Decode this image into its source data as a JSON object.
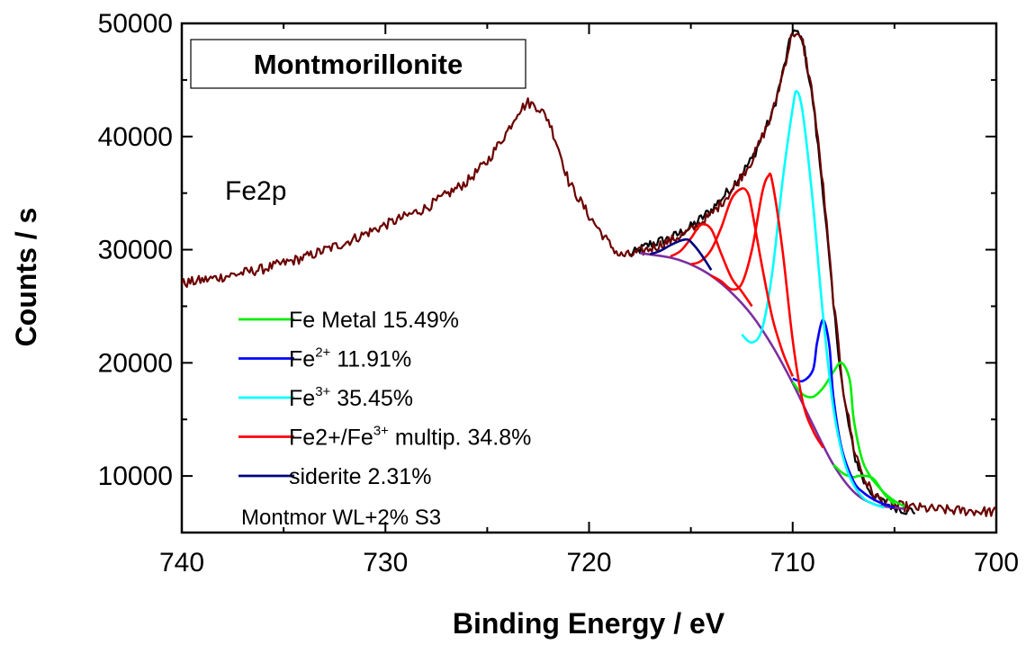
{
  "chart_data": {
    "type": "line",
    "title": "Montmorillonite",
    "xlabel": "Binding Energy / eV",
    "ylabel": "Counts / s",
    "xlim": [
      740,
      700
    ],
    "ylim": [
      5000,
      50000
    ],
    "x_ticks": [
      "740",
      "730",
      "720",
      "710",
      "700"
    ],
    "y_ticks": [
      "10000",
      "20000",
      "30000",
      "40000",
      "50000"
    ],
    "grid": false,
    "legend_position": "bottom-left",
    "annotations": {
      "region_label": "Fe2p",
      "sample_label": "Montmor WL+2%  S3"
    },
    "legend": [
      {
        "prefix": "Fe Metal  15.49%",
        "sup": "",
        "suffix": "",
        "color": "#00ee00"
      },
      {
        "prefix": "Fe",
        "sup": "2+",
        "suffix": "   11.91%",
        "color": "#0000ff"
      },
      {
        "prefix": "Fe",
        "sup": "3+",
        "suffix": "   35.45%",
        "color": "#00ffff"
      },
      {
        "prefix": "Fe2+/Fe",
        "sup": "3+",
        "suffix": " multip.  34.8%",
        "color": "#ff0000"
      },
      {
        "prefix": "siderite   2.31%",
        "sup": "",
        "suffix": "",
        "color": "#000080"
      }
    ],
    "series": [
      {
        "role": "measured spectrum",
        "color": "#000000",
        "x": [
          718,
          717,
          716,
          715,
          714,
          713,
          712,
          711,
          710.5,
          710,
          709.5,
          709,
          708.5,
          708,
          707.5,
          707,
          706.5,
          706,
          705.5,
          705,
          704.5,
          704
        ],
        "y": [
          29500,
          30500,
          31000,
          32000,
          33500,
          35500,
          38000,
          42000,
          45500,
          49500,
          48500,
          43000,
          35000,
          25000,
          17000,
          12000,
          9500,
          8200,
          7600,
          7300,
          7000,
          6900
        ]
      },
      {
        "role": "experimental envelope",
        "color": "#6b0000",
        "x": [
          740,
          738,
          736,
          734,
          732,
          730,
          728,
          726,
          725,
          724,
          723.5,
          723,
          722.5,
          722,
          721.5,
          721,
          720,
          719,
          718.5,
          718,
          717,
          716,
          715,
          714,
          713,
          712,
          711,
          710.5,
          710,
          709.5,
          709,
          708.5,
          708,
          707.5,
          707,
          706.5,
          706,
          705.5,
          705,
          704,
          703,
          702,
          701,
          700
        ],
        "y": [
          27000,
          27600,
          28300,
          29300,
          30600,
          32200,
          33700,
          36000,
          37800,
          40500,
          42200,
          43000,
          42600,
          41500,
          39000,
          36000,
          33000,
          30500,
          29500,
          29500,
          30100,
          30800,
          31700,
          33100,
          35200,
          37900,
          42000,
          45500,
          49300,
          48300,
          43500,
          35500,
          25500,
          17500,
          12500,
          9800,
          8300,
          7700,
          7400,
          7200,
          7050,
          6950,
          6900,
          6800
        ]
      },
      {
        "role": "background",
        "color": "#7b2ea0",
        "x": [
          717.5,
          716,
          715,
          714,
          713,
          712,
          711,
          710,
          709,
          708,
          707,
          706,
          705,
          704.5
        ],
        "y": [
          29700,
          29300,
          28700,
          27700,
          26200,
          24200,
          21500,
          18200,
          14500,
          11000,
          8600,
          7500,
          7200,
          7100
        ]
      },
      {
        "role": "Fe Metal",
        "color": "#00ee00",
        "x": [
          710,
          709.5,
          709,
          708.5,
          708,
          707.6,
          707.2,
          707,
          706.6,
          706.2,
          706,
          705.5,
          705,
          704.5
        ],
        "y": [
          18300,
          17200,
          17000,
          17800,
          19200,
          20000,
          18500,
          15000,
          11500,
          10000,
          9500,
          8500,
          7800,
          7300
        ]
      },
      {
        "role": "Fe Metal minor peak",
        "color": "#00ee00",
        "x": [
          708,
          707.5,
          707,
          706.8,
          706.4,
          706,
          705.5,
          705
        ],
        "y": [
          11000,
          10200,
          9900,
          10000,
          10000,
          9700,
          8400,
          7500
        ]
      },
      {
        "role": "Fe2+",
        "color": "#0000ff",
        "x": [
          710,
          709.5,
          709,
          708.8,
          708.5,
          708.2,
          708,
          707.6,
          707,
          706.5,
          706,
          705.5,
          705
        ],
        "y": [
          18600,
          18400,
          19400,
          21800,
          23800,
          21500,
          17000,
          12500,
          9500,
          8500,
          7900,
          7500,
          7200
        ]
      },
      {
        "role": "Fe3+",
        "color": "#00ffff",
        "x": [
          712.5,
          712,
          711.5,
          711,
          710.5,
          710,
          709.8,
          709.5,
          709,
          708.5,
          708,
          707.5,
          707,
          706.5,
          706,
          705.5
        ],
        "y": [
          22500,
          21800,
          23000,
          28000,
          36000,
          42500,
          44000,
          42000,
          34000,
          24000,
          16000,
          11500,
          9200,
          8000,
          7500,
          7200
        ]
      },
      {
        "role": "multiplet 1",
        "color": "#ff0000",
        "x": [
          716,
          715.5,
          715,
          714.5,
          714,
          713.5,
          713,
          712.5,
          712
        ],
        "y": [
          29400,
          29900,
          31000,
          32200,
          31800,
          29600,
          27500,
          26300,
          25000
        ]
      },
      {
        "role": "multiplet 2",
        "color": "#ff0000",
        "x": [
          715,
          714.5,
          714,
          713.5,
          713,
          712.5,
          712.2,
          712,
          711.5,
          711,
          710.5,
          710
        ],
        "y": [
          28700,
          29000,
          30000,
          32000,
          34500,
          35400,
          35000,
          33500,
          28500,
          24000,
          21000,
          18800
        ]
      },
      {
        "role": "multiplet 3",
        "color": "#ff0000",
        "x": [
          714,
          713.5,
          713,
          712.5,
          712,
          711.5,
          711.2,
          711,
          710.5,
          710,
          709.5,
          709,
          708.5
        ],
        "y": [
          27700,
          27200,
          26500,
          27000,
          30000,
          35000,
          36500,
          36000,
          30000,
          22000,
          16500,
          14000,
          12500
        ]
      },
      {
        "role": "siderite",
        "color": "#000080",
        "x": [
          717,
          716.5,
          716,
          715.5,
          715.2,
          715,
          714.5,
          714
        ],
        "y": [
          29600,
          29900,
          30400,
          30800,
          30900,
          30700,
          29600,
          28200
        ]
      }
    ]
  }
}
